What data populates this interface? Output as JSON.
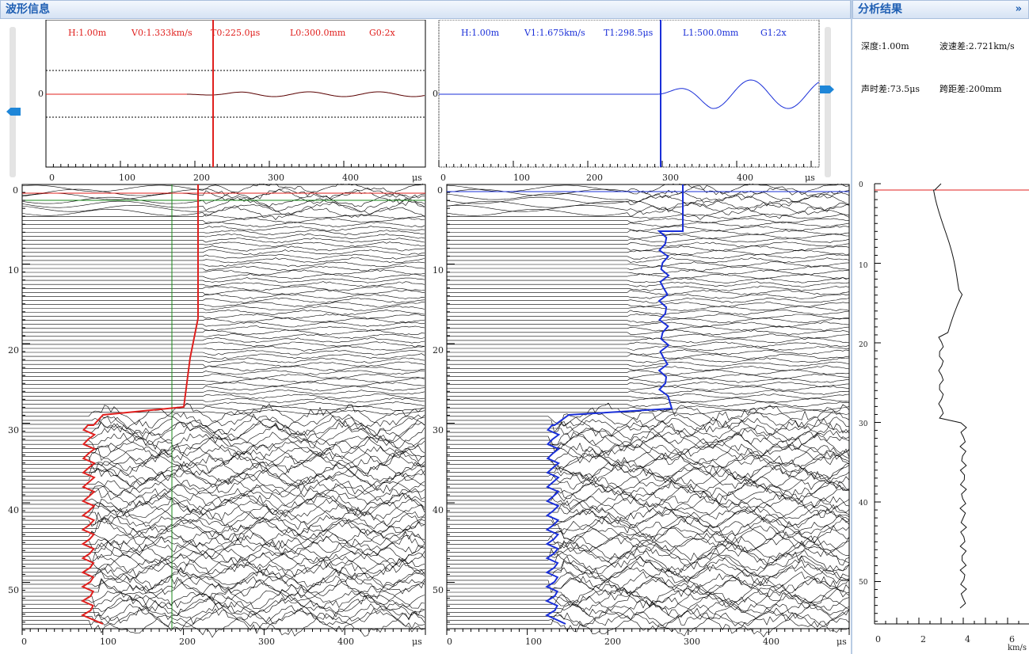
{
  "waveform_panel": {
    "title": "波形信息",
    "left": {
      "params": {
        "h": "H:1.00m",
        "v": "V0:1.333km/s",
        "t": "T0:225.0μs",
        "l": "L0:300.0mm",
        "g": "G0:2x"
      },
      "zero_label": "0",
      "x_ticks": [
        "0",
        "100",
        "200",
        "300",
        "400"
      ],
      "x_unit": "μs",
      "line_color": "#e0201e"
    },
    "right": {
      "params": {
        "h": "H:1.00m",
        "v": "V1:1.675km/s",
        "t": "T1:298.5μs",
        "l": "L1:500.0mm",
        "g": "G1:2x"
      },
      "zero_label": "0",
      "x_ticks": [
        "0",
        "100",
        "200",
        "300",
        "400"
      ],
      "x_unit": "μs",
      "line_color": "#1a2fd8"
    },
    "depth_ticks": [
      "0",
      "10",
      "20",
      "30",
      "40",
      "50"
    ],
    "scan_x_ticks": [
      "0",
      "100",
      "200",
      "300",
      "400"
    ],
    "scan_x_unit": "μs"
  },
  "analysis_panel": {
    "title": "分析结果",
    "expand_label": "»",
    "depth": "深度:1.00m",
    "velocity_diff": "波速差:2.721km/s",
    "time_diff": "声时差:73.5μs",
    "span_diff": "跨距差:200mm",
    "depth_ticks": [
      "0",
      "10",
      "20",
      "30",
      "40",
      "50"
    ],
    "x_ticks": [
      "0",
      "2",
      "4",
      "6"
    ],
    "x_unit": "km/s",
    "marker_color": "#e0201e"
  },
  "colors": {
    "header_text": "#1f5fb3",
    "header_bg": "#dbe6f5",
    "accent_blue": "#1e86d8",
    "red": "#e0201e",
    "blue": "#1a2fd8",
    "green": "#1a8a1a"
  }
}
